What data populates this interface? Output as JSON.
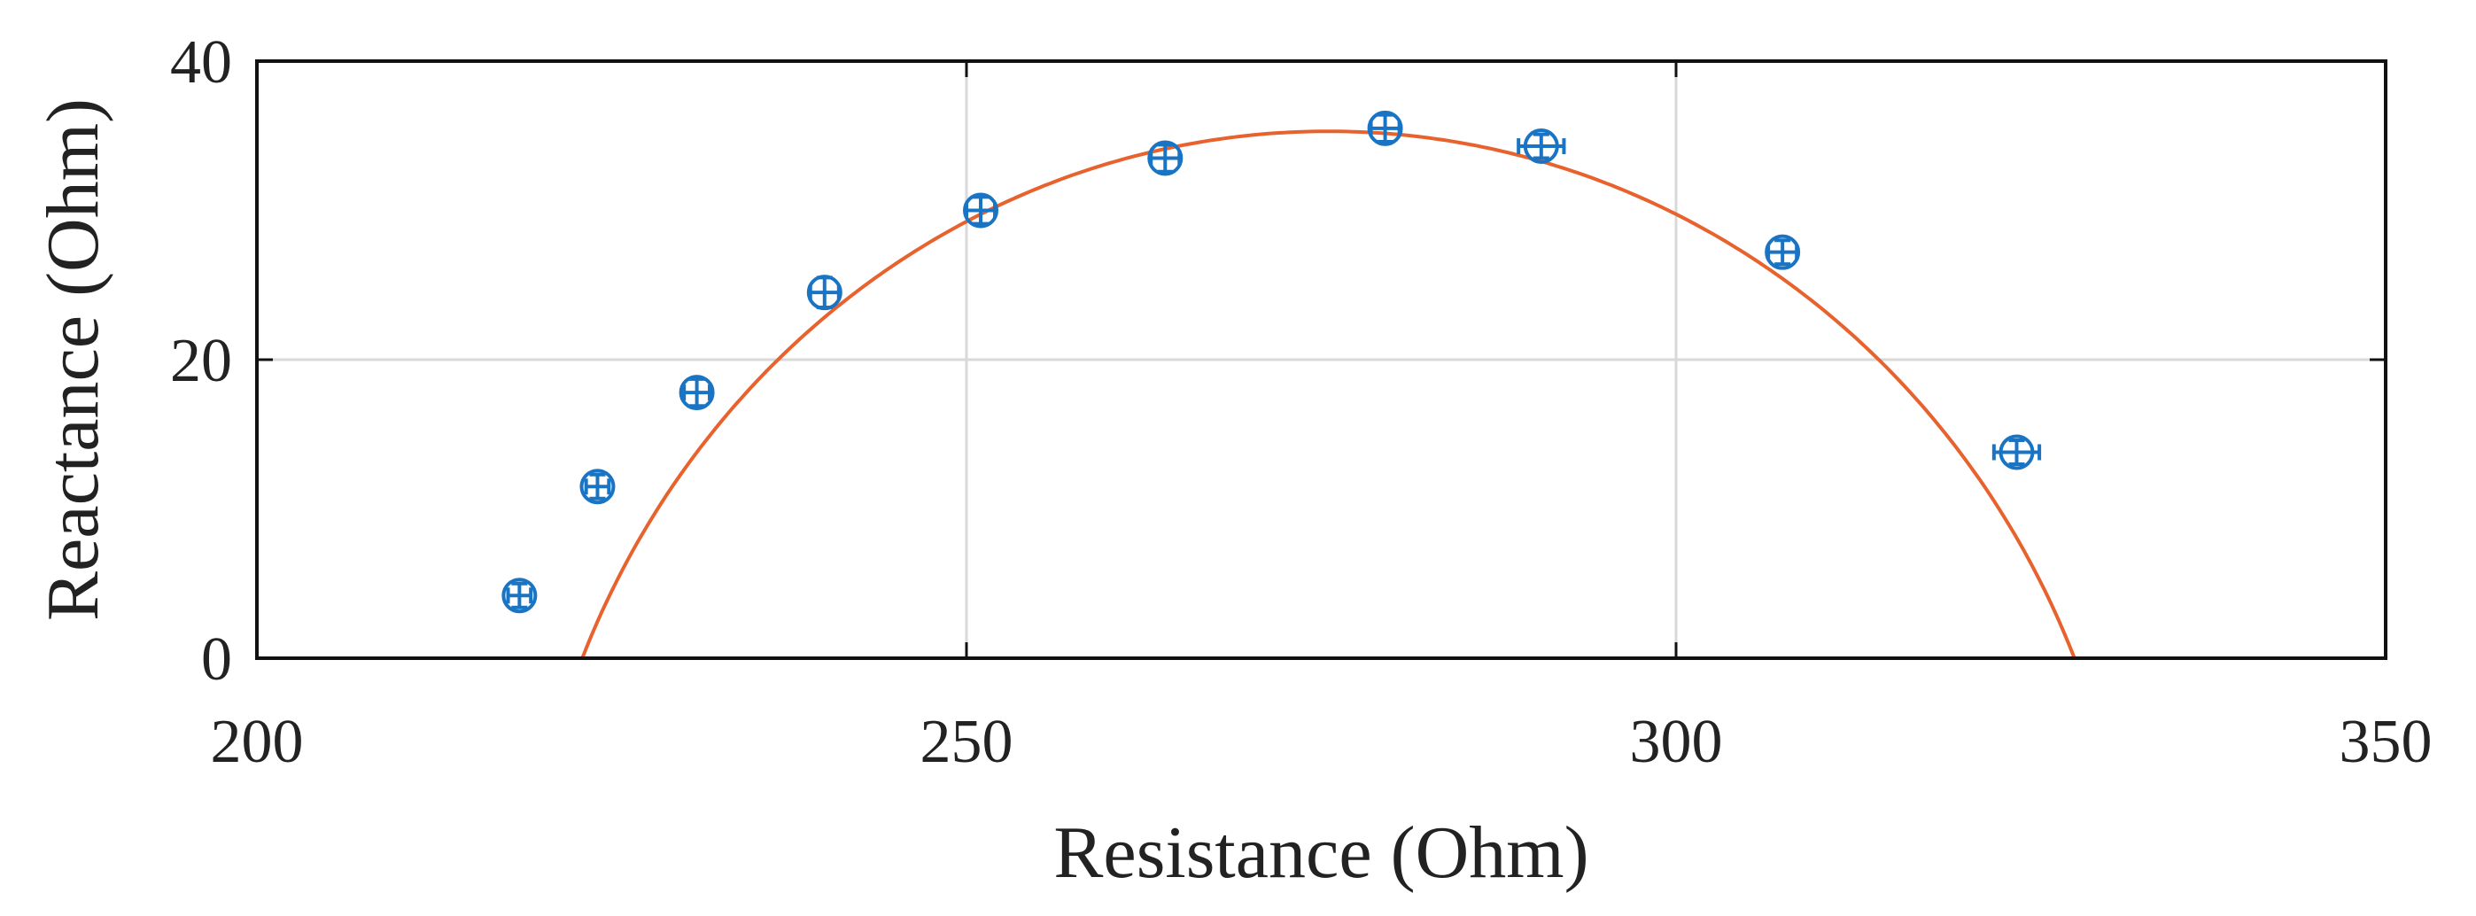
{
  "chart_data": {
    "type": "scatter",
    "title": "",
    "xlabel": "Resistance (Ohm)",
    "ylabel": "Reactance (Ohm)",
    "xlim": [
      200,
      350
    ],
    "ylim": [
      0,
      40
    ],
    "xticks": [
      200,
      250,
      300,
      350
    ],
    "yticks": [
      0,
      20,
      40
    ],
    "grid": true,
    "legend": "none",
    "series": [
      {
        "kind": "points-with-error-bars",
        "marker": "circle",
        "color": "#1a74c4",
        "x": [
          218.5,
          224,
          231,
          240,
          251,
          264,
          279.5,
          290.5,
          307.5,
          324
        ],
        "y": [
          4.2,
          11.5,
          17.8,
          24.5,
          30,
          33.5,
          35.5,
          34.3,
          27.2,
          13.8
        ],
        "xerr": [
          0.8,
          0.8,
          0.9,
          1.0,
          1.0,
          1.0,
          1.0,
          1.6,
          1.0,
          1.6
        ],
        "yerr": [
          0.8,
          0.8,
          0.9,
          1.0,
          0.9,
          0.9,
          0.9,
          0.8,
          0.8,
          0.8
        ]
      },
      {
        "kind": "fit-circle",
        "color": "#e8622e",
        "center_x": 275.5,
        "center_y": -21.5,
        "radius": 56.8
      }
    ]
  }
}
